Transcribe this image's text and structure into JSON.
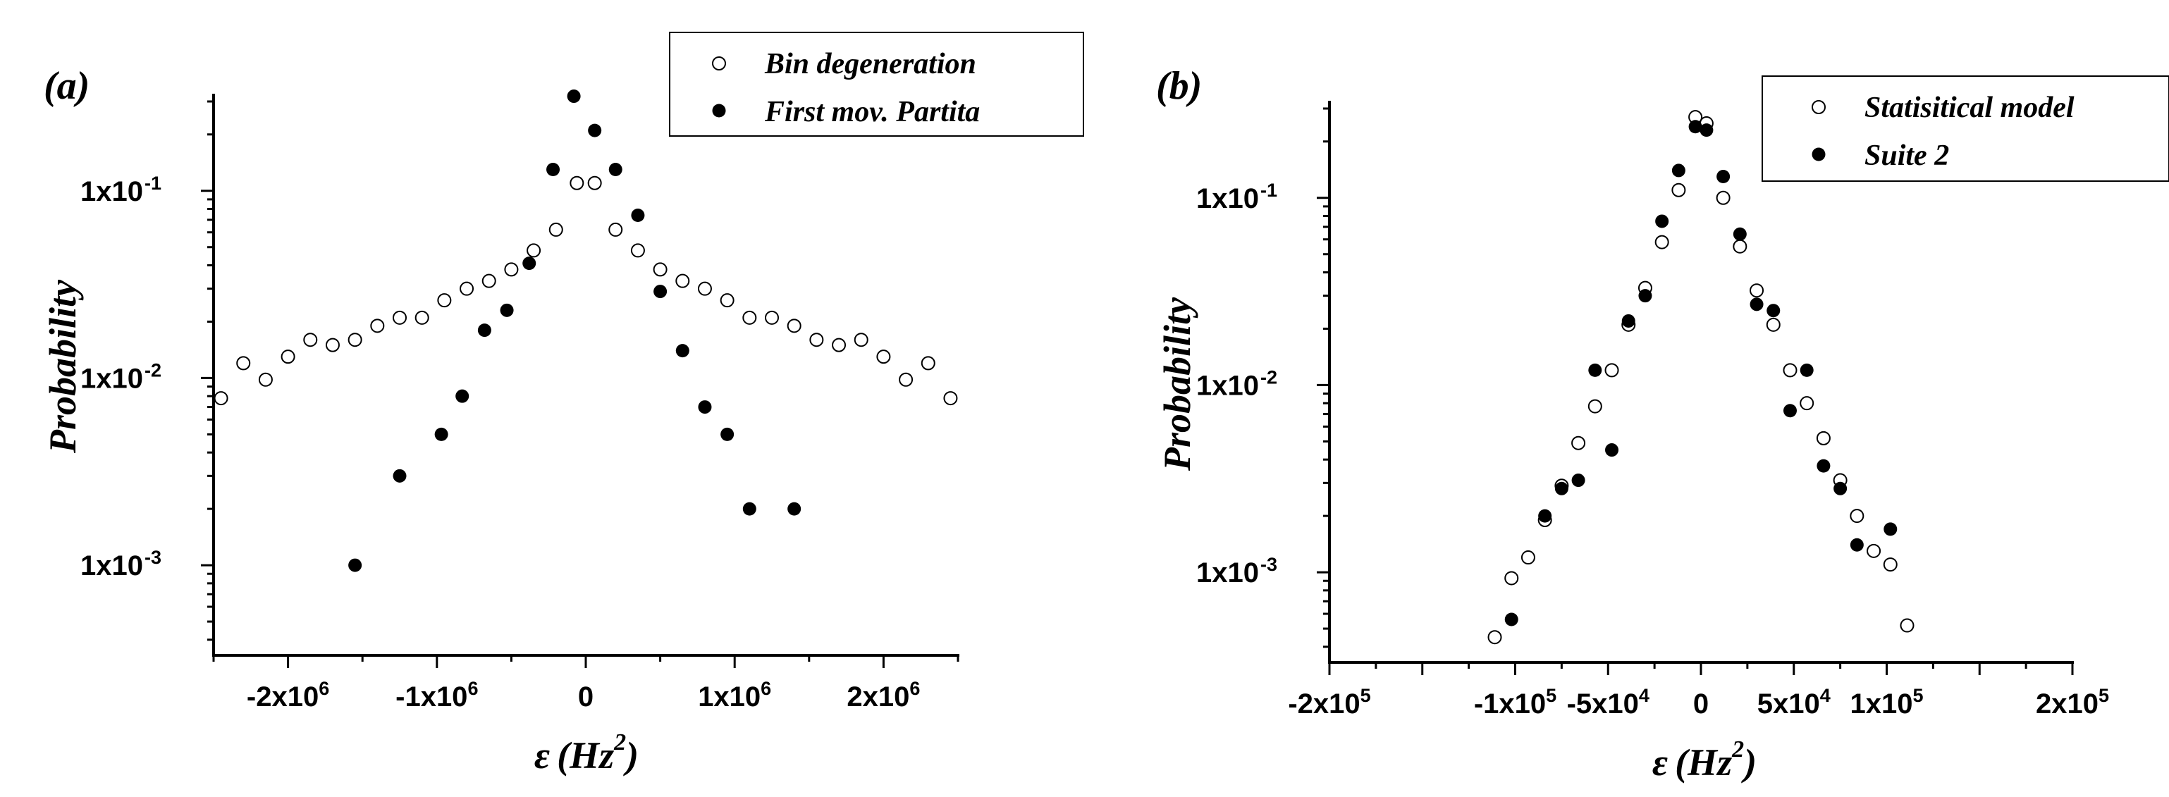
{
  "chart_data": [
    {
      "type": "scatter",
      "panel_label": "(a)",
      "xlabel": "ε",
      "xlabel_unit": "(Hz",
      "xlabel_unit_sup": "2",
      "xlabel_unit_close": ")",
      "ylabel": "Probability",
      "yscale": "log",
      "xlim": [
        -2500000,
        2500000
      ],
      "ylim": [
        0.00033,
        0.33
      ],
      "grid": false,
      "legend_position": "top-right",
      "x_ticks": [
        {
          "value": -2000000,
          "base": "-2x10",
          "exp": "6"
        },
        {
          "value": -1000000,
          "base": "-1x10",
          "exp": "6"
        },
        {
          "value": 0,
          "base": "0",
          "exp": ""
        },
        {
          "value": 1000000,
          "base": "1x10",
          "exp": "6"
        },
        {
          "value": 2000000,
          "base": "2x10",
          "exp": "6"
        }
      ],
      "y_ticks": [
        {
          "value": 0.1,
          "label": "1x10",
          "exp": "-1"
        },
        {
          "value": 0.01,
          "label": "1x10",
          "exp": "-2"
        },
        {
          "value": 0.001,
          "label": "1x10",
          "exp": "-3"
        }
      ],
      "series": [
        {
          "name": "Bin degeneration",
          "marker": "open-circle",
          "x": [
            -2450000,
            -2300000,
            -2150000,
            -2000000,
            -1850000,
            -1700000,
            -1550000,
            -1400000,
            -1250000,
            -1100000,
            -950000,
            -800000,
            -650000,
            -500000,
            -350000,
            -200000,
            -60000,
            60000,
            200000,
            350000,
            500000,
            650000,
            800000,
            950000,
            1100000,
            1250000,
            1400000,
            1550000,
            1700000,
            1850000,
            2000000,
            2150000,
            2300000,
            2450000
          ],
          "y": [
            0.0078,
            0.012,
            0.0098,
            0.013,
            0.016,
            0.015,
            0.016,
            0.019,
            0.021,
            0.021,
            0.026,
            0.03,
            0.033,
            0.038,
            0.048,
            0.062,
            0.11,
            0.11,
            0.062,
            0.048,
            0.038,
            0.033,
            0.03,
            0.026,
            0.021,
            0.021,
            0.019,
            0.016,
            0.015,
            0.016,
            0.013,
            0.0098,
            0.012,
            0.0078
          ]
        },
        {
          "name": "First mov. Partita",
          "marker": "filled-circle",
          "x": [
            -1550000,
            -1250000,
            -970000,
            -830000,
            -680000,
            -530000,
            -380000,
            -220000,
            -80000,
            60000,
            200000,
            350000,
            500000,
            650000,
            800000,
            950000,
            1100000,
            1400000
          ],
          "y": [
            0.001,
            0.003,
            0.005,
            0.008,
            0.018,
            0.023,
            0.041,
            0.13,
            0.32,
            0.21,
            0.13,
            0.074,
            0.029,
            0.014,
            0.007,
            0.005,
            0.002,
            0.002
          ]
        }
      ]
    },
    {
      "type": "scatter",
      "panel_label": "(b)",
      "xlabel": "ε",
      "xlabel_unit": "(Hz",
      "xlabel_unit_sup": "2",
      "xlabel_unit_close": ")",
      "ylabel": "Probability",
      "yscale": "log",
      "xlim": [
        -200000,
        200000
      ],
      "ylim": [
        0.00033,
        0.33
      ],
      "grid": false,
      "legend_position": "top-right",
      "x_ticks": [
        {
          "value": -200000,
          "base": "-2x10",
          "exp": "5"
        },
        {
          "value": -100000,
          "base": "-1x10",
          "exp": "5"
        },
        {
          "value": -50000,
          "base": "-5x10",
          "exp": "4"
        },
        {
          "value": 0,
          "base": "0",
          "exp": ""
        },
        {
          "value": 50000,
          "base": "5x10",
          "exp": "4"
        },
        {
          "value": 100000,
          "base": "1x10",
          "exp": "5"
        },
        {
          "value": 200000,
          "base": "2x10",
          "exp": "5"
        }
      ],
      "y_ticks": [
        {
          "value": 0.1,
          "label": "1x10",
          "exp": "-1"
        },
        {
          "value": 0.01,
          "label": "1x10",
          "exp": "-2"
        },
        {
          "value": 0.001,
          "label": "1x10",
          "exp": "-3"
        }
      ],
      "series": [
        {
          "name": "Statisitical model",
          "marker": "open-circle",
          "x": [
            -111000,
            -102000,
            -93000,
            -84000,
            -75000,
            -66000,
            -57000,
            -48000,
            -39000,
            -30000,
            -21000,
            -12000,
            -3000,
            3000,
            12000,
            21000,
            30000,
            39000,
            48000,
            57000,
            66000,
            75000,
            84000,
            93000,
            102000,
            111000
          ],
          "y": [
            0.00045,
            0.00093,
            0.0012,
            0.0019,
            0.0029,
            0.0049,
            0.0077,
            0.012,
            0.021,
            0.033,
            0.058,
            0.11,
            0.27,
            0.25,
            0.1,
            0.055,
            0.032,
            0.021,
            0.012,
            0.008,
            0.0052,
            0.0031,
            0.002,
            0.0013,
            0.0011,
            0.00052
          ]
        },
        {
          "name": "Suite 2",
          "marker": "filled-circle",
          "x": [
            -102000,
            -84000,
            -75000,
            -66000,
            -57000,
            -48000,
            -39000,
            -30000,
            -21000,
            -12000,
            -3000,
            3000,
            12000,
            21000,
            30000,
            39000,
            48000,
            57000,
            66000,
            75000,
            84000,
            102000
          ],
          "y": [
            0.00056,
            0.002,
            0.0028,
            0.0031,
            0.012,
            0.0045,
            0.022,
            0.03,
            0.075,
            0.14,
            0.24,
            0.23,
            0.13,
            0.064,
            0.027,
            0.025,
            0.0073,
            0.012,
            0.0037,
            0.0028,
            0.0014,
            0.0017
          ]
        }
      ]
    }
  ]
}
